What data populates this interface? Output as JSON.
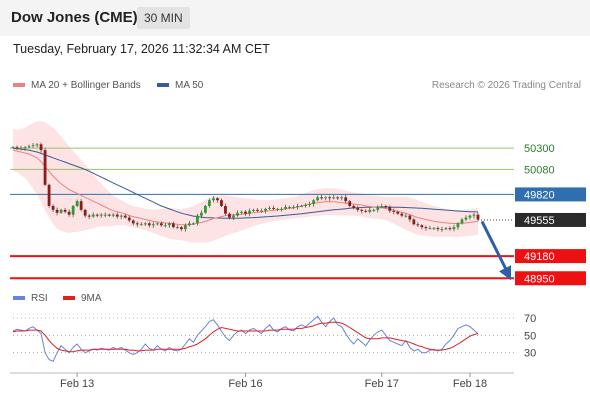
{
  "header": {
    "title": "Dow Jones (CME)",
    "timeframe": "30 MIN",
    "datetime": "Tuesday, February 17, 2026 11:32:34 AM CET"
  },
  "legend": {
    "ma20_bb": "MA 20 + Bollinger Bands",
    "ma50": "MA 50",
    "credit": "Research © 2026 Trading Central",
    "rsi": "RSI",
    "rsi_ma": "9MA"
  },
  "colors": {
    "ma20": "#f08080",
    "ma50": "#3a5a9a",
    "bb_fill": "#fde0e0",
    "resistance_green": "#9ac36b",
    "pivot_blue": "#2e6fb0",
    "support_red": "#ee1111",
    "price_tag": "#2b2b2b",
    "arrow": "#2c5fa8",
    "rsi": "#6a82d6",
    "rsi_ma": "#e02020",
    "candle_up": "#2e9b2e",
    "candle_down": "#8b1c1c"
  },
  "chart_data": [
    {
      "type": "candlestick",
      "y_ticks": [
        "50300",
        "50080",
        "49820",
        "49555",
        "49180",
        "48950"
      ],
      "levels": [
        {
          "label": "50300",
          "value": 50300,
          "kind": "resistance"
        },
        {
          "label": "50080",
          "value": 50080,
          "kind": "resistance"
        },
        {
          "label": "49820",
          "value": 49820,
          "kind": "pivot"
        },
        {
          "label": "49555",
          "value": 49555,
          "kind": "last_price"
        },
        {
          "label": "49180",
          "value": 49180,
          "kind": "support"
        },
        {
          "label": "48950",
          "value": 48950,
          "kind": "support"
        }
      ],
      "ylim": [
        48880,
        50800
      ],
      "x_ticks": [
        "Feb 13",
        "Feb 16",
        "Feb 17",
        "Feb 18"
      ],
      "x_tick_index": [
        16,
        58,
        92,
        114
      ],
      "n_bars": 117,
      "close": [
        50310,
        50300,
        50300,
        50310,
        50320,
        50330,
        50340,
        50280,
        49920,
        49700,
        49660,
        49630,
        49660,
        49640,
        49610,
        49700,
        49750,
        49660,
        49600,
        49590,
        49610,
        49600,
        49610,
        49610,
        49600,
        49610,
        49590,
        49600,
        49580,
        49550,
        49520,
        49510,
        49510,
        49520,
        49500,
        49510,
        49520,
        49500,
        49500,
        49520,
        49480,
        49480,
        49460,
        49500,
        49520,
        49520,
        49600,
        49630,
        49700,
        49760,
        49780,
        49760,
        49700,
        49620,
        49580,
        49600,
        49630,
        49640,
        49620,
        49650,
        49660,
        49650,
        49650,
        49670,
        49680,
        49670,
        49670,
        49670,
        49690,
        49690,
        49690,
        49700,
        49700,
        49710,
        49720,
        49760,
        49790,
        49780,
        49790,
        49780,
        49790,
        49780,
        49790,
        49750,
        49700,
        49680,
        49660,
        49650,
        49640,
        49660,
        49660,
        49690,
        49700,
        49690,
        49650,
        49640,
        49620,
        49600,
        49600,
        49560,
        49510,
        49500,
        49480,
        49470,
        49470,
        49470,
        49460,
        49460,
        49470,
        49460,
        49480,
        49520,
        49560,
        49580,
        49600,
        49610,
        49560
      ],
      "ma20": [
        50280,
        50270,
        50260,
        50250,
        50240,
        50220,
        50200,
        50160,
        50110,
        50060,
        50010,
        49970,
        49930,
        49900,
        49870,
        49850,
        49830,
        49810,
        49790,
        49770,
        49750,
        49730,
        49710,
        49690,
        49670,
        49650,
        49640,
        49630,
        49620,
        49600,
        49590,
        49580,
        49570,
        49560,
        49550,
        49540,
        49535,
        49530,
        49525,
        49520,
        49515,
        49510,
        49505,
        49505,
        49505,
        49510,
        49520,
        49530,
        49540,
        49555,
        49570,
        49580,
        49590,
        49600,
        49605,
        49610,
        49610,
        49615,
        49620,
        49625,
        49630,
        49635,
        49640,
        49645,
        49650,
        49655,
        49660,
        49665,
        49670,
        49675,
        49680,
        49690,
        49700,
        49710,
        49720,
        49730,
        49735,
        49740,
        49745,
        49745,
        49745,
        49740,
        49735,
        49730,
        49725,
        49720,
        49715,
        49710,
        49700,
        49695,
        49690,
        49685,
        49680,
        49675,
        49665,
        49655,
        49645,
        49635,
        49625,
        49610,
        49595,
        49580,
        49570,
        49560,
        49550,
        49540,
        49535,
        49530,
        49525,
        49520,
        49518,
        49518,
        49520,
        49525,
        49530,
        49535,
        49540
      ],
      "ma50": [
        50300,
        50295,
        50290,
        50285,
        50280,
        50270,
        50260,
        50245,
        50230,
        50215,
        50200,
        50185,
        50170,
        50155,
        50140,
        50125,
        50110,
        50095,
        50080,
        50060,
        50040,
        50020,
        50000,
        49980,
        49960,
        49940,
        49920,
        49900,
        49880,
        49860,
        49840,
        49820,
        49800,
        49780,
        49760,
        49740,
        49720,
        49700,
        49685,
        49670,
        49655,
        49640,
        49625,
        49615,
        49605,
        49595,
        49590,
        49585,
        49580,
        49578,
        49576,
        49575,
        49574,
        49573,
        49572,
        49572,
        49572,
        49574,
        49576,
        49578,
        49580,
        49582,
        49585,
        49588,
        49590,
        49593,
        49596,
        49600,
        49604,
        49608,
        49612,
        49616,
        49620,
        49625,
        49630,
        49635,
        49640,
        49645,
        49650,
        49655,
        49660,
        49664,
        49668,
        49672,
        49676,
        49680,
        49682,
        49684,
        49686,
        49687,
        49688,
        49688,
        49688,
        49688,
        49688,
        49687,
        49686,
        49685,
        49684,
        49682,
        49680,
        49678,
        49676,
        49673,
        49670,
        49667,
        49664,
        49660,
        49657,
        49654,
        49651,
        49648,
        49645,
        49643,
        49641,
        49640,
        49638
      ],
      "bb_width": [
        220,
        220,
        240,
        260,
        300,
        340,
        380,
        420,
        460,
        480,
        500,
        500,
        490,
        470,
        450,
        420,
        400,
        370,
        340,
        310,
        280,
        250,
        220,
        200,
        180,
        160,
        140,
        130,
        120,
        115,
        110,
        110,
        110,
        110,
        115,
        120,
        130,
        140,
        150,
        160,
        160,
        160,
        160,
        170,
        180,
        190,
        200,
        210,
        220,
        230,
        230,
        225,
        220,
        210,
        200,
        190,
        180,
        170,
        160,
        150,
        140,
        130,
        125,
        120,
        115,
        110,
        110,
        110,
        110,
        110,
        110,
        115,
        120,
        125,
        130,
        135,
        140,
        140,
        140,
        140,
        140,
        140,
        135,
        130,
        125,
        120,
        120,
        120,
        120,
        120,
        120,
        120,
        120,
        120,
        130,
        140,
        150,
        160,
        170,
        175,
        180,
        180,
        175,
        170,
        165,
        160,
        155,
        150,
        145,
        140,
        140,
        140,
        140,
        140,
        140,
        140,
        140
      ]
    },
    {
      "type": "line",
      "series_names": [
        "RSI",
        "9MA"
      ],
      "y_ticks": [
        "70",
        "50",
        "30"
      ],
      "ylim": [
        10,
        85
      ],
      "rsi": [
        55,
        57,
        56,
        55,
        58,
        60,
        56,
        52,
        30,
        22,
        20,
        30,
        38,
        34,
        30,
        36,
        40,
        34,
        30,
        32,
        34,
        33,
        35,
        34,
        33,
        36,
        34,
        36,
        33,
        30,
        28,
        30,
        34,
        40,
        35,
        33,
        38,
        34,
        32,
        36,
        33,
        32,
        34,
        40,
        46,
        42,
        50,
        55,
        60,
        66,
        68,
        62,
        55,
        48,
        44,
        50,
        54,
        56,
        52,
        56,
        58,
        55,
        52,
        58,
        62,
        56,
        54,
        58,
        60,
        56,
        55,
        60,
        62,
        60,
        64,
        68,
        72,
        65,
        60,
        66,
        70,
        62,
        60,
        52,
        45,
        40,
        46,
        42,
        38,
        45,
        50,
        54,
        56,
        50,
        44,
        42,
        40,
        38,
        44,
        36,
        32,
        34,
        30,
        30,
        33,
        34,
        32,
        34,
        40,
        44,
        50,
        58,
        60,
        62,
        60,
        56,
        52
      ],
      "rsi_ma": [
        54,
        55,
        55,
        55,
        56,
        56,
        56,
        55,
        50,
        44,
        39,
        35,
        33,
        32,
        31,
        31,
        32,
        33,
        33,
        33,
        34,
        34,
        34,
        34,
        34,
        34,
        34,
        34,
        34,
        33,
        33,
        32,
        32,
        33,
        33,
        33,
        34,
        34,
        34,
        34,
        34,
        34,
        34,
        35,
        37,
        38,
        40,
        43,
        46,
        50,
        54,
        57,
        59,
        58,
        57,
        56,
        55,
        55,
        55,
        55,
        55,
        55,
        55,
        55,
        56,
        56,
        56,
        57,
        57,
        57,
        57,
        58,
        58,
        59,
        60,
        61,
        63,
        64,
        64,
        65,
        65,
        65,
        64,
        62,
        59,
        56,
        53,
        50,
        47,
        46,
        46,
        46,
        47,
        47,
        47,
        46,
        45,
        44,
        43,
        42,
        40,
        38,
        37,
        35,
        34,
        33,
        33,
        33,
        34,
        35,
        37,
        40,
        43,
        46,
        49,
        51,
        52
      ]
    }
  ]
}
